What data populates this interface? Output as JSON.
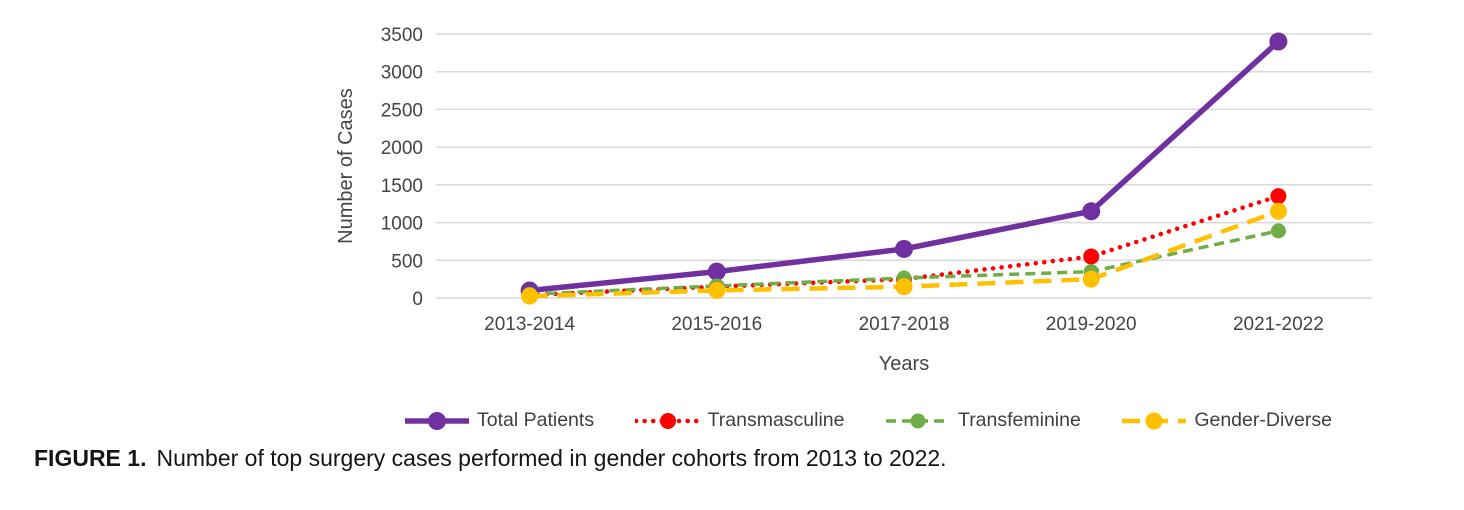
{
  "figure": {
    "caption_label": "FIGURE 1.",
    "caption_text": "Number of top surgery cases performed in gender cohorts from 2013 to 2022."
  },
  "chart_data": {
    "type": "line",
    "title": "",
    "xlabel": "Years",
    "ylabel": "Number of Cases",
    "ylim": [
      0,
      3500
    ],
    "yticks": [
      0,
      500,
      1000,
      1500,
      2000,
      2500,
      3000,
      3500
    ],
    "grid": true,
    "grid_color": "#D9D9D9",
    "legend_position": "bottom",
    "categories": [
      "2013-2014",
      "2015-2016",
      "2017-2018",
      "2019-2020",
      "2021-2022"
    ],
    "series": [
      {
        "name": "Total Patients",
        "values": [
          100,
          350,
          650,
          1150,
          3400
        ],
        "color": "#7030A0",
        "style": "solid"
      },
      {
        "name": "Transmasculine",
        "values": [
          40,
          150,
          250,
          550,
          1350
        ],
        "color": "#FF0000",
        "style": "dotted"
      },
      {
        "name": "Transfeminine",
        "values": [
          50,
          160,
          265,
          350,
          890
        ],
        "color": "#70AD47",
        "style": "dashed"
      },
      {
        "name": "Gender-Diverse",
        "values": [
          25,
          100,
          150,
          250,
          1150
        ],
        "color": "#FFC000",
        "style": "long-dash"
      }
    ]
  }
}
